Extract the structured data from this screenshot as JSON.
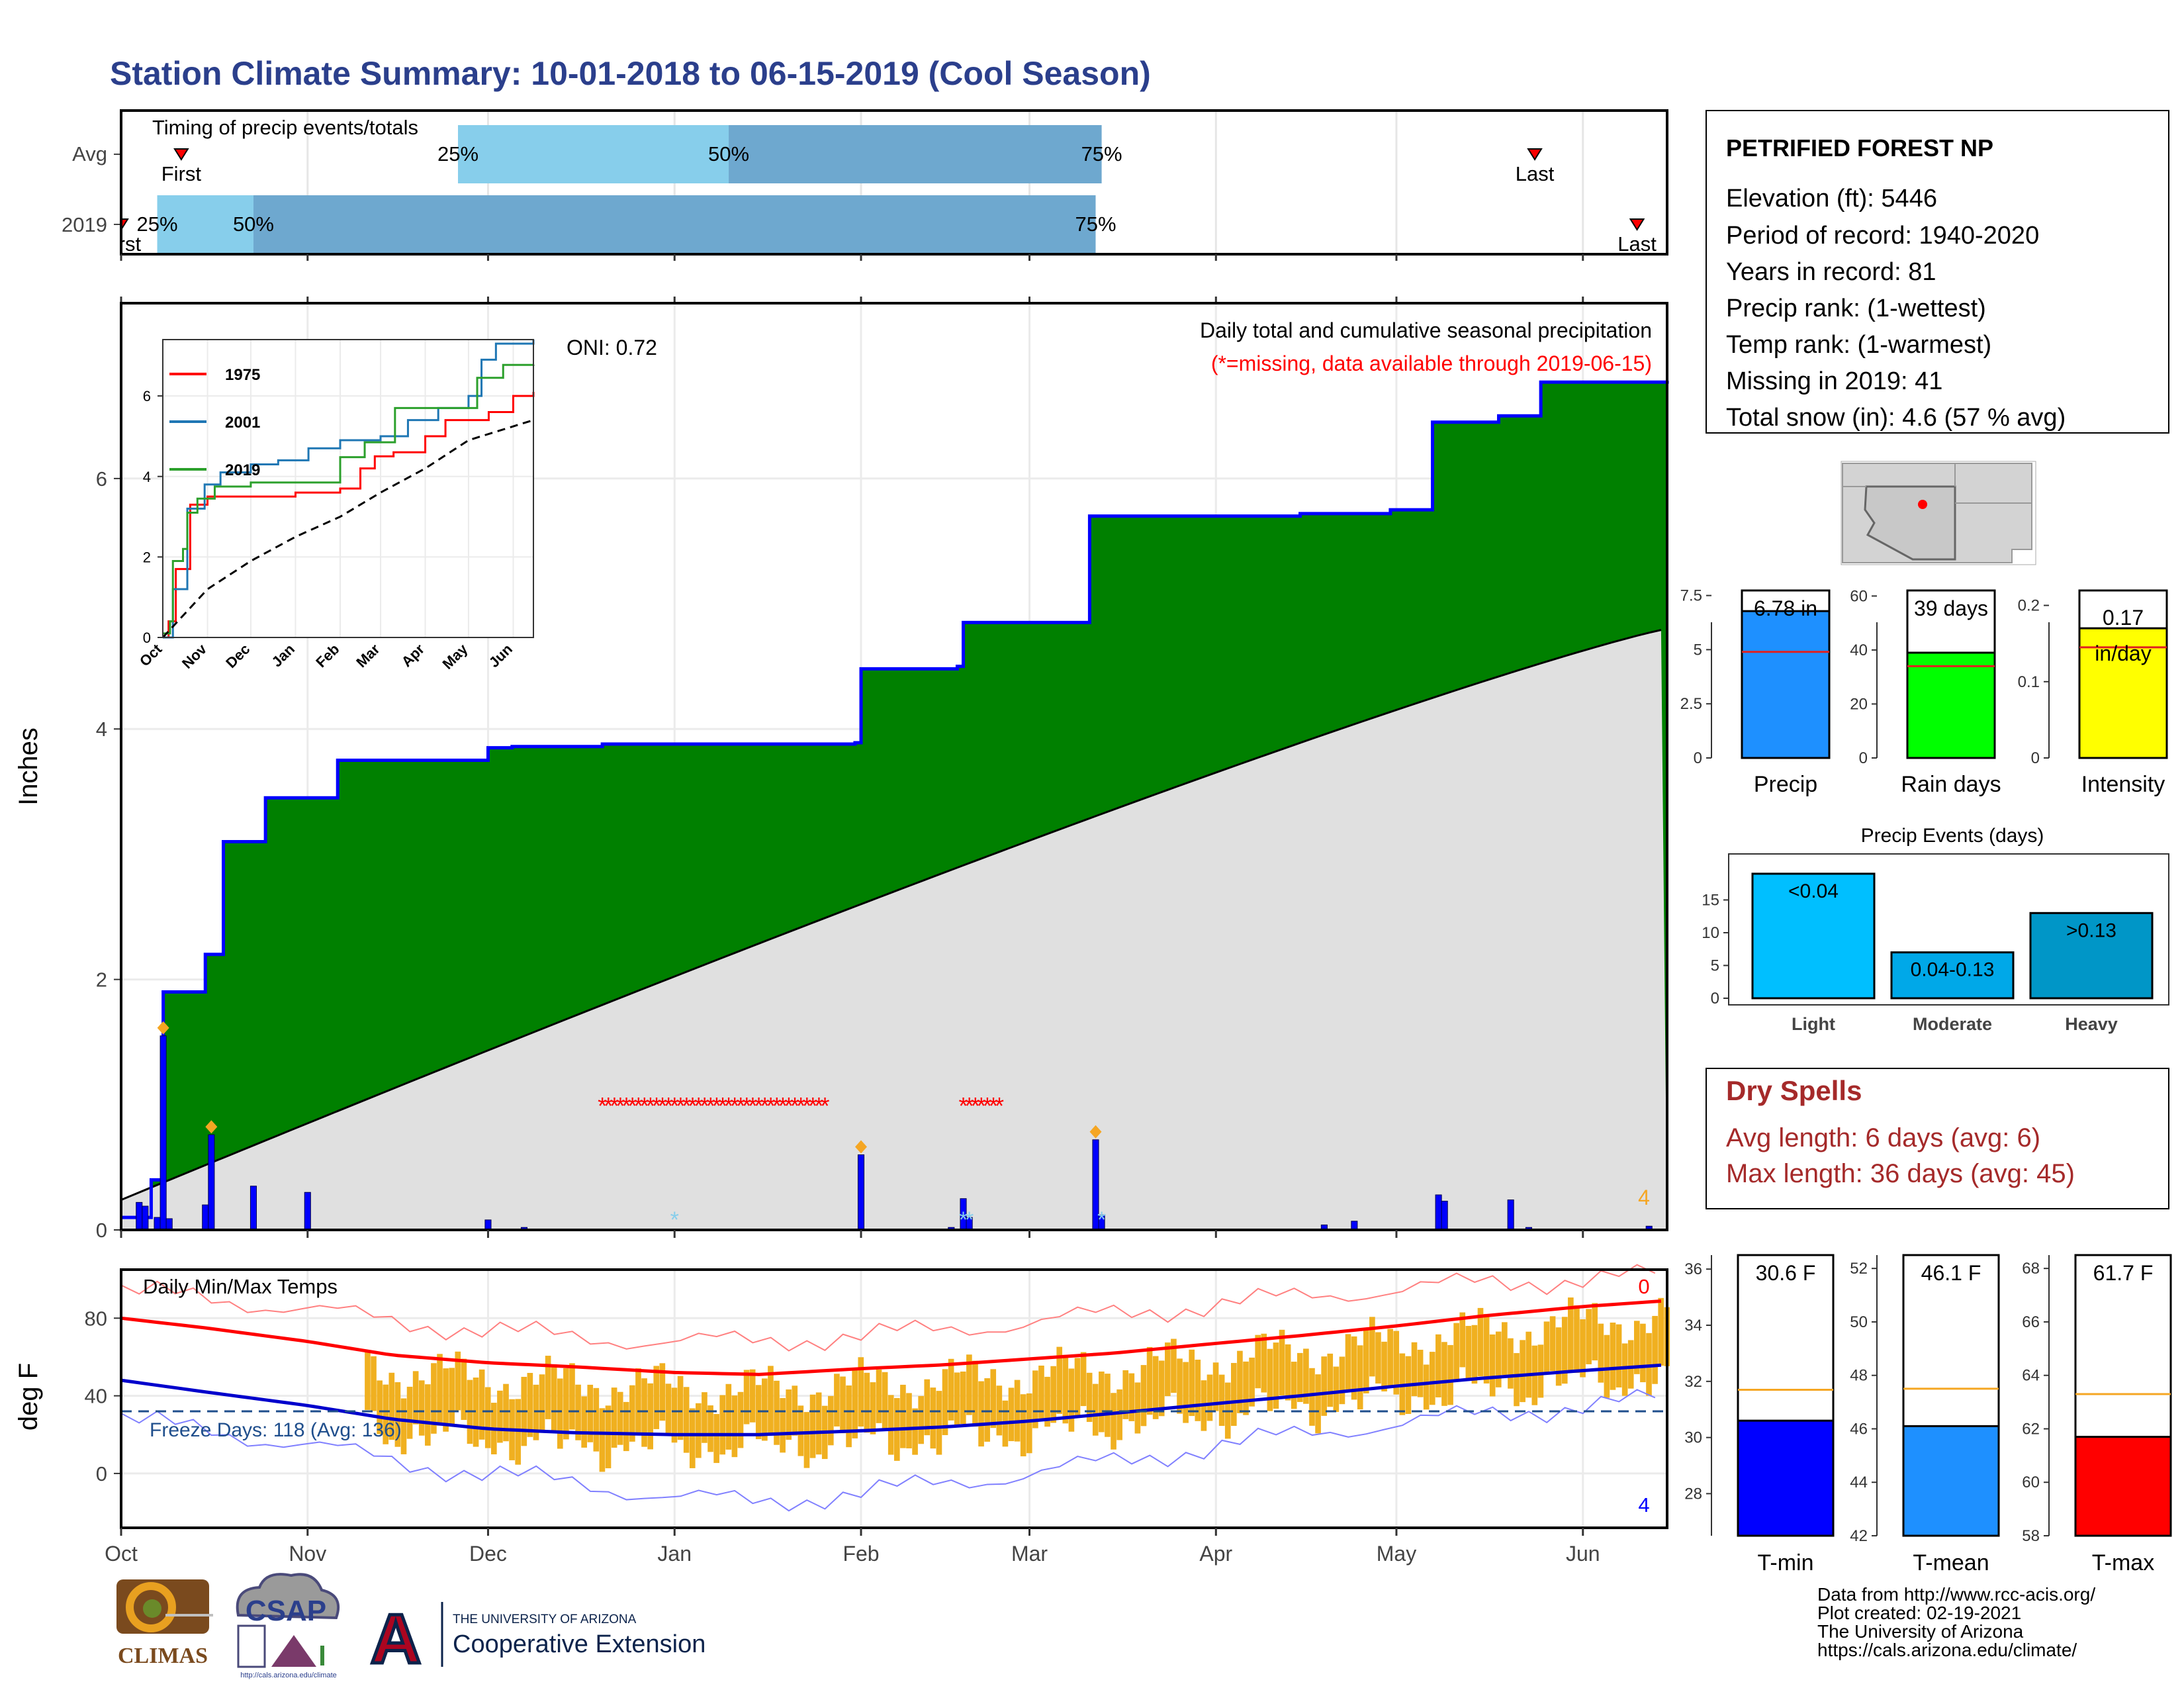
{
  "title": "Station Climate Summary: 10-01-2018 to 06-15-2019 (Cool Season)",
  "timing": {
    "title": "Timing of precip events/totals",
    "rows": [
      {
        "label": "Avg",
        "first": "First",
        "p25": "25%",
        "p50": "50%",
        "p75": "75%",
        "last": "Last"
      },
      {
        "label": "2019",
        "first": "First",
        "p25": "25%",
        "p50": "50%",
        "p75": "75%",
        "last": "Last"
      }
    ],
    "colors": {
      "light": "#87ceeb",
      "dark": "#6ea8cf"
    }
  },
  "info": {
    "station": "PETRIFIED FOREST NP",
    "lines": [
      "Elevation (ft): 5446",
      "Period of record: 1940-2020",
      "Years in record: 81",
      "Precip rank:  (1-wettest)",
      "Temp rank:  (1-warmest)",
      "Missing in 2019: 41",
      "Total snow (in): 4.6 (57 % avg)"
    ]
  },
  "precip_panel": {
    "ylabel": "Inches",
    "oni": "ONI: 0.72",
    "note1": "Daily total and cumulative seasonal precipitation",
    "note2": "(*=missing, data available through 2019-06-15)",
    "corner_count": "4",
    "colors": {
      "cumulative": "#008000",
      "average": "#e0e0e0",
      "line": "#0000ff",
      "missing": "#ff0000",
      "snow": "#87ceeb",
      "marker": "#f5a623"
    }
  },
  "temp_panel": {
    "ylabel": "deg F",
    "title": "Daily Min/Max Temps",
    "freeze": "Freeze Days: 118 (Avg: 136)",
    "count_top": "0",
    "count_bottom": "4"
  },
  "month_labels": [
    "Oct",
    "Nov",
    "Dec",
    "Jan",
    "Feb",
    "Mar",
    "Apr",
    "May",
    "Jun"
  ],
  "stat_bars": [
    {
      "label": "Precip",
      "value_label": "6.78 in",
      "color": "#1e90ff"
    },
    {
      "label": "Rain days",
      "value_label": "39 days",
      "color": "#00ff00"
    },
    {
      "label": "Intensity",
      "value_label": "0.17 in/day",
      "color": "#ffff00"
    }
  ],
  "events": {
    "title": "Precip Events (days)"
  },
  "dry_spells": {
    "title": "Dry Spells",
    "avg": "Avg length: 6 days (avg: 6)",
    "max": "Max length: 36 days (avg: 45)"
  },
  "temp_bars": [
    {
      "label": "T-min",
      "value_label": "30.6 F",
      "color": "#0000ff"
    },
    {
      "label": "T-mean",
      "value_label": "46.1 F",
      "color": "#1e90ff"
    },
    {
      "label": "T-max",
      "value_label": "61.7 F",
      "color": "#ff0000"
    }
  ],
  "footer": {
    "lines": [
      "Data from http://www.rcc-acis.org/",
      "Plot created: 02-19-2021",
      "The University of Arizona",
      "https://cals.arizona.edu/climate/"
    ],
    "logo_climas": "CLIMAS",
    "logo_csap": "CSAP",
    "logo_csap_url": "http://cals.arizona.edu/climate",
    "ua_line1": "THE UNIVERSITY OF ARIZONA",
    "ua_line2": "Cooperative Extension",
    "ua_mark": "A"
  },
  "chart_data": [
    {
      "id": "timing",
      "type": "bar",
      "series": [
        {
          "name": "Avg",
          "first": "10-11",
          "p25": "11-26",
          "p50": "01-10",
          "p75": "03-13",
          "last": "05-24"
        },
        {
          "name": "2019",
          "first": "10-01",
          "p25": "10-07",
          "p50": "10-23",
          "p75": "03-12",
          "last": "06-10"
        }
      ]
    },
    {
      "id": "precip",
      "type": "area",
      "xlabel": "",
      "ylabel": "Inches",
      "ylim": [
        0,
        7.4
      ],
      "yticks": [
        0,
        2,
        4,
        6
      ],
      "x_dates": [
        "10-01",
        "10-06",
        "10-08",
        "10-15",
        "10-18",
        "10-25",
        "10-30",
        "11-06",
        "11-26",
        "12-01",
        "12-05",
        "12-20",
        "01-10",
        "01-31",
        "02-01",
        "02-15",
        "02-17",
        "02-18",
        "03-10",
        "03-11",
        "03-29",
        "04-15",
        "04-30",
        "05-07",
        "05-18",
        "05-20",
        "05-25",
        "06-15"
      ],
      "cumulative": [
        0.1,
        0.4,
        1.9,
        2.2,
        3.1,
        3.45,
        3.45,
        3.75,
        3.75,
        3.85,
        3.86,
        3.88,
        3.88,
        3.89,
        4.48,
        4.48,
        4.5,
        4.85,
        4.85,
        5.7,
        5.7,
        5.72,
        5.75,
        6.45,
        6.5,
        6.5,
        6.77,
        6.78
      ],
      "average_end": 4.8,
      "daily_bars": [
        [
          "10-04",
          0.22
        ],
        [
          "10-05",
          0.19
        ],
        [
          "10-07",
          0.1
        ],
        [
          "10-08",
          1.55
        ],
        [
          "10-09",
          0.09
        ],
        [
          "10-15",
          0.2
        ],
        [
          "10-16",
          0.76
        ],
        [
          "10-23",
          0.35
        ],
        [
          "11-01",
          0.3
        ],
        [
          "12-01",
          0.08
        ],
        [
          "12-07",
          0.02
        ],
        [
          "02-01",
          0.6
        ],
        [
          "02-16",
          0.02
        ],
        [
          "02-18",
          0.25
        ],
        [
          "02-19",
          0.1
        ],
        [
          "03-12",
          0.72
        ],
        [
          "03-13",
          0.12
        ],
        [
          "04-19",
          0.04
        ],
        [
          "04-24",
          0.07
        ],
        [
          "05-08",
          0.28
        ],
        [
          "05-09",
          0.23
        ],
        [
          "05-20",
          0.24
        ],
        [
          "05-23",
          0.02
        ],
        [
          "06-12",
          0.03
        ]
      ],
      "missing_ranges": [
        [
          "12-20",
          "01-26"
        ],
        [
          "02-18",
          "02-24"
        ]
      ],
      "snow_dates": [
        "01-01",
        "02-18",
        "02-19",
        "03-13"
      ],
      "inset": {
        "type": "line",
        "ylim": [
          0,
          7.4
        ],
        "yticks": [
          0,
          2,
          4,
          6
        ],
        "series": [
          {
            "name": "1975",
            "color": "#ff0000",
            "x": [
              "10-01",
              "10-05",
              "10-10",
              "10-20",
              "11-01",
              "12-10",
              "01-01",
              "01-20",
              "02-01",
              "02-15",
              "02-25",
              "03-10",
              "04-01",
              "04-15",
              "05-01",
              "05-15",
              "06-01",
              "06-15"
            ],
            "y": [
              0,
              0.4,
              1.7,
              3.3,
              3.5,
              3.5,
              3.6,
              3.6,
              3.7,
              4.2,
              4.5,
              4.6,
              5.0,
              5.4,
              5.4,
              5.6,
              6.0,
              6.1
            ]
          },
          {
            "name": "2001",
            "color": "#1f77b4",
            "x": [
              "10-01",
              "10-08",
              "10-18",
              "10-30",
              "11-10",
              "12-01",
              "12-20",
              "01-10",
              "02-01",
              "03-01",
              "03-20",
              "04-10",
              "05-01",
              "05-10",
              "05-20",
              "06-15"
            ],
            "y": [
              0,
              1.2,
              3.2,
              3.8,
              4.1,
              4.3,
              4.4,
              4.7,
              4.9,
              5.0,
              5.4,
              5.7,
              6.0,
              6.9,
              7.3,
              7.4
            ]
          },
          {
            "name": "2019",
            "color": "#2ca02c",
            "x": [
              "10-01",
              "10-06",
              "10-08",
              "10-15",
              "10-18",
              "10-25",
              "11-06",
              "12-01",
              "02-01",
              "02-18",
              "03-11",
              "05-07",
              "05-25",
              "06-15"
            ],
            "y": [
              0.1,
              0.4,
              1.9,
              2.2,
              3.1,
              3.45,
              3.75,
              3.85,
              4.48,
              4.85,
              5.7,
              6.45,
              6.77,
              6.78
            ]
          },
          {
            "name": "",
            "color": "#000000",
            "dashed": true,
            "x": [
              "10-01",
              "11-01",
              "12-01",
              "01-01",
              "02-01",
              "03-01",
              "04-01",
              "05-01",
              "06-15"
            ],
            "y": [
              0,
              1.2,
              1.9,
              2.5,
              3.0,
              3.6,
              4.2,
              4.9,
              5.4
            ]
          }
        ]
      }
    },
    {
      "id": "temps",
      "type": "line",
      "ylim": [
        -28,
        105
      ],
      "yticks": [
        0,
        40,
        80
      ],
      "x_dates": [
        "10-01",
        "10-15",
        "11-01",
        "11-15",
        "12-01",
        "12-15",
        "01-01",
        "01-15",
        "02-01",
        "02-15",
        "03-01",
        "03-15",
        "04-01",
        "04-15",
        "05-01",
        "05-15",
        "06-01",
        "06-15"
      ],
      "avg_max": [
        80,
        75,
        68,
        61,
        57,
        55,
        52,
        51,
        54,
        56,
        59,
        62,
        67,
        71,
        76,
        81,
        86,
        89
      ],
      "avg_min": [
        48,
        42,
        35,
        28,
        23,
        21,
        20,
        20,
        22,
        24,
        27,
        31,
        36,
        40,
        45,
        49,
        53,
        56
      ],
      "record_max": [
        94,
        90,
        85,
        78,
        74,
        70,
        68,
        68,
        71,
        74,
        78,
        82,
        87,
        91,
        95,
        98,
        100,
        102
      ],
      "record_min": [
        28,
        22,
        15,
        6,
        0,
        -5,
        -12,
        -15,
        -10,
        -5,
        0,
        6,
        14,
        20,
        26,
        30,
        35,
        38
      ],
      "freeze_line": 32,
      "missing_until": "11-11"
    },
    {
      "id": "precip-bar",
      "type": "bar",
      "categories": [
        "Precip"
      ],
      "values": [
        6.78
      ],
      "average": 4.9,
      "ylim": [
        0,
        8.1
      ],
      "yticks": [
        0,
        2.5,
        5,
        7.5
      ]
    },
    {
      "id": "raindays-bar",
      "type": "bar",
      "categories": [
        "Rain days"
      ],
      "values": [
        39
      ],
      "average": 34,
      "ylim": [
        0,
        65
      ],
      "yticks": [
        0,
        20,
        40,
        60
      ]
    },
    {
      "id": "intensity-bar",
      "type": "bar",
      "categories": [
        "Intensity"
      ],
      "values": [
        0.17
      ],
      "average": 0.145,
      "ylim": [
        0,
        0.23
      ],
      "yticks": [
        0,
        0.1,
        0.2
      ]
    },
    {
      "id": "events-bar",
      "type": "bar",
      "categories": [
        "Light",
        "Moderate",
        "Heavy"
      ],
      "value_labels": [
        "<0.04",
        "0.04-0.13",
        ">0.13"
      ],
      "values": [
        19,
        7,
        13
      ],
      "ylim": [
        0,
        20
      ],
      "yticks": [
        0,
        5,
        10,
        15
      ],
      "colors": [
        "#00bfff",
        "#00a8e8",
        "#0096c7"
      ]
    },
    {
      "id": "tmin-bar",
      "type": "bar",
      "categories": [
        "T-min"
      ],
      "values": [
        30.6
      ],
      "average": 31.7,
      "ylim": [
        26.5,
        36.5
      ],
      "yticks": [
        28,
        30,
        32,
        34,
        36
      ]
    },
    {
      "id": "tmean-bar",
      "type": "bar",
      "categories": [
        "T-mean"
      ],
      "values": [
        46.1
      ],
      "average": 47.5,
      "ylim": [
        42,
        52.5
      ],
      "yticks": [
        42,
        44,
        46,
        48,
        50,
        52
      ]
    },
    {
      "id": "tmax-bar",
      "type": "bar",
      "categories": [
        "T-max"
      ],
      "values": [
        61.7
      ],
      "average": 63.3,
      "ylim": [
        58,
        68.5
      ],
      "yticks": [
        58,
        60,
        62,
        64,
        66,
        68
      ]
    }
  ]
}
